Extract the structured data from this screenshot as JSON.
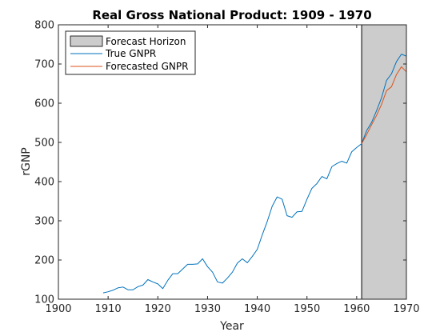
{
  "chart_data": {
    "type": "line",
    "title": "Real Gross National Product: 1909 - 1970",
    "xlabel": "Year",
    "ylabel": "rGNP",
    "xlim": [
      1900,
      1970
    ],
    "ylim": [
      100,
      800
    ],
    "xticks": [
      1900,
      1910,
      1920,
      1930,
      1940,
      1950,
      1960,
      1970
    ],
    "yticks": [
      100,
      200,
      300,
      400,
      500,
      600,
      700,
      800
    ],
    "grid": false,
    "legend_position": "top-left",
    "forecast_horizon": {
      "name": "Forecast Horizon",
      "x_range": [
        1961,
        1970
      ],
      "color": "#cccccc"
    },
    "series": [
      {
        "name": "True GNPR",
        "color": "#0072bd",
        "x": [
          1909,
          1910,
          1911,
          1912,
          1913,
          1914,
          1915,
          1916,
          1917,
          1918,
          1919,
          1920,
          1921,
          1922,
          1923,
          1924,
          1925,
          1926,
          1927,
          1928,
          1929,
          1930,
          1931,
          1932,
          1933,
          1934,
          1935,
          1936,
          1937,
          1938,
          1939,
          1940,
          1941,
          1942,
          1943,
          1944,
          1945,
          1946,
          1947,
          1948,
          1949,
          1950,
          1951,
          1952,
          1953,
          1954,
          1955,
          1956,
          1957,
          1958,
          1959,
          1960,
          1961,
          1962,
          1963,
          1964,
          1965,
          1966,
          1967,
          1968,
          1969,
          1970
        ],
        "values": [
          116,
          119,
          123,
          129,
          131,
          124,
          124,
          132,
          136,
          150,
          144,
          139,
          127,
          148,
          165,
          165,
          177,
          189,
          189,
          190,
          203,
          183,
          169,
          144,
          141,
          154,
          169,
          192,
          203,
          193,
          209,
          227,
          264,
          298,
          337,
          361,
          355,
          313,
          309,
          323,
          324,
          355,
          383,
          395,
          413,
          407,
          438,
          446,
          452,
          447,
          476,
          487,
          497,
          530,
          551,
          581,
          614,
          658,
          675,
          706,
          725,
          720
        ]
      },
      {
        "name": "Forecasted GNPR",
        "color": "#d95319",
        "x": [
          1961,
          1962,
          1963,
          1964,
          1965,
          1966,
          1967,
          1968,
          1969,
          1970
        ],
        "values": [
          497,
          520,
          545,
          569,
          597,
          632,
          642,
          673,
          693,
          680
        ]
      }
    ]
  }
}
